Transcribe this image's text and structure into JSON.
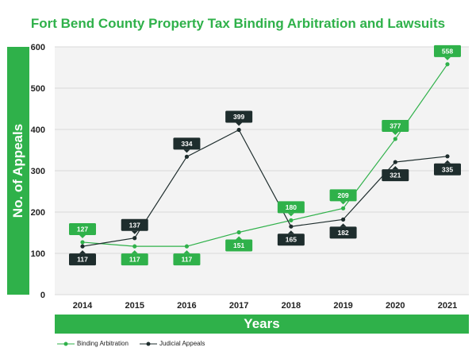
{
  "chart_data": {
    "type": "line",
    "title": "Fort Bend County Property Tax Binding Arbitration and Lawsuits",
    "xlabel": "Years",
    "ylabel": "No. of Appeals",
    "categories": [
      "2014",
      "2015",
      "2016",
      "2017",
      "2018",
      "2019",
      "2020",
      "2021"
    ],
    "ylim": [
      0,
      600
    ],
    "yticks": [
      0,
      100,
      200,
      300,
      400,
      500,
      600
    ],
    "grid": true,
    "legend_position": "bottom-left",
    "series": [
      {
        "name": "Binding Arbitration",
        "color": "#2fb14a",
        "values": [
          127,
          117,
          117,
          151,
          180,
          209,
          377,
          558
        ]
      },
      {
        "name": "Judicial Appeals",
        "color": "#1e2d2d",
        "values": [
          117,
          137,
          334,
          399,
          165,
          182,
          321,
          335
        ]
      }
    ]
  }
}
